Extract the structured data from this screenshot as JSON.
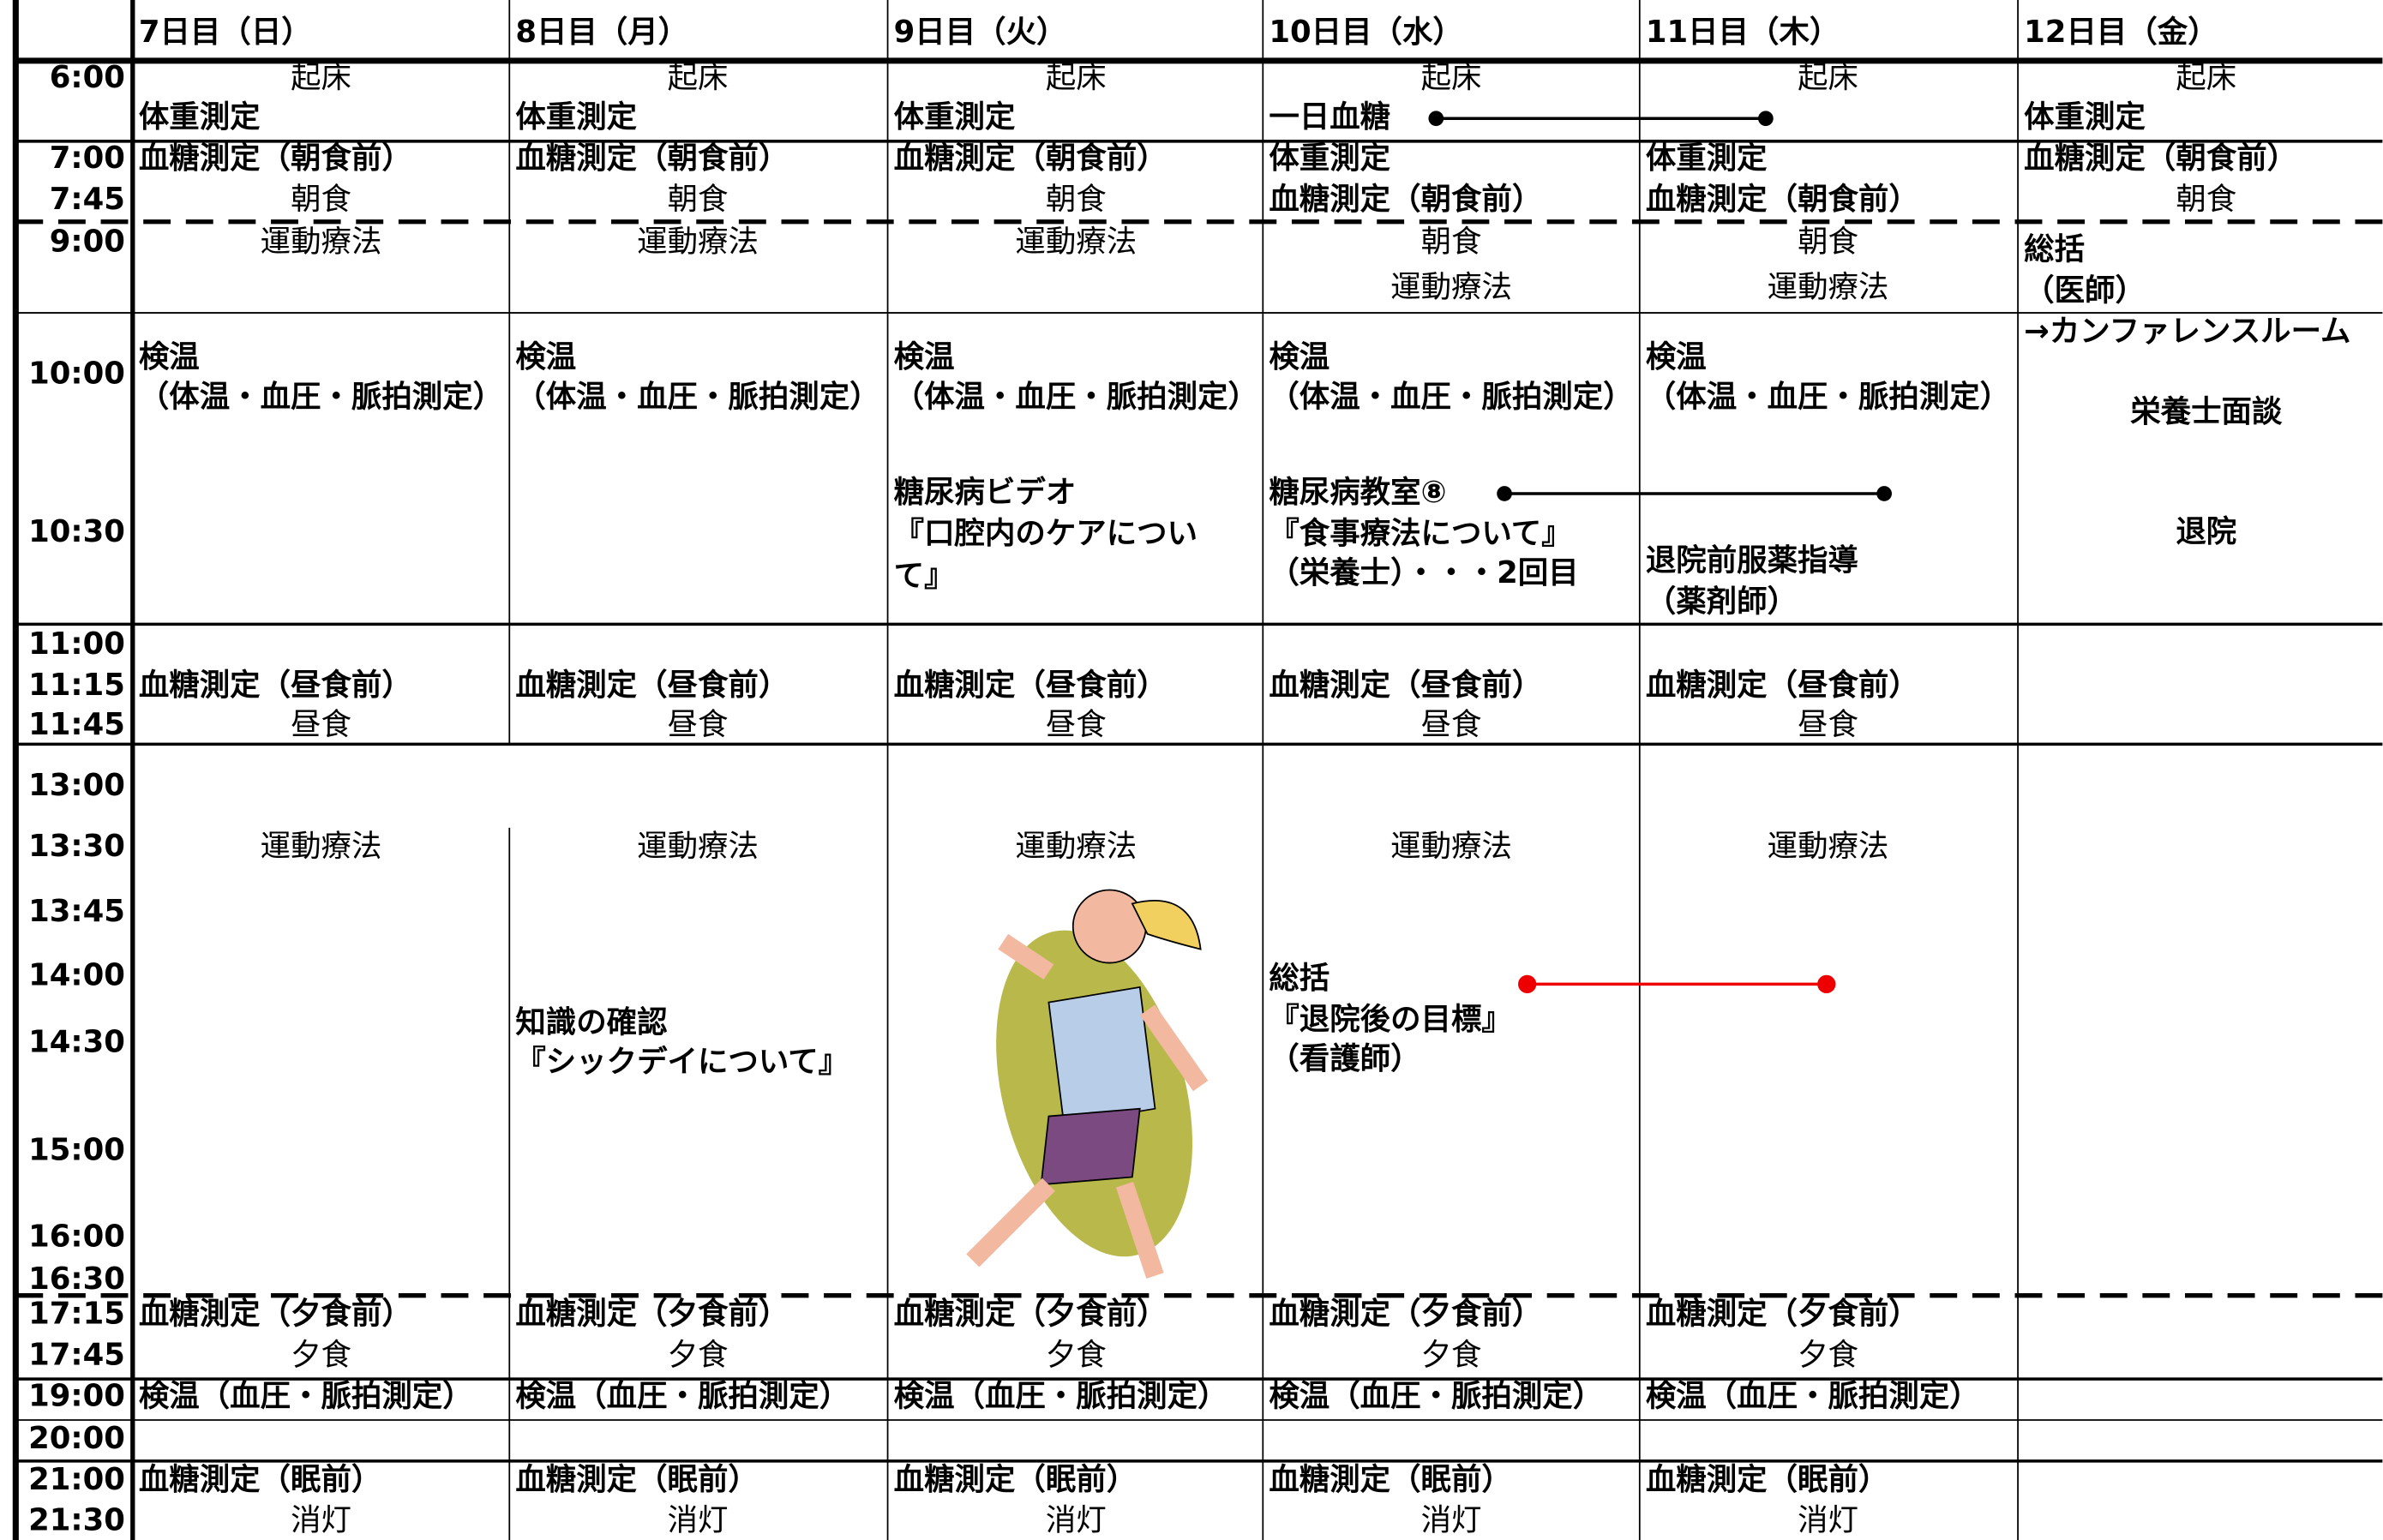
{
  "times": [
    "6:00",
    "7:00",
    "7:45",
    "9:00",
    "10:00",
    "10:30",
    "11:00",
    "11:15",
    "11:45",
    "13:00",
    "13:30",
    "13:45",
    "14:00",
    "14:30",
    "15:00",
    "16:00",
    "16:30",
    "17:15",
    "17:45",
    "19:00",
    "20:00",
    "21:00",
    "21:30"
  ],
  "days": [
    {
      "header": "7日目（日）",
      "items": [
        "起床",
        "体重測定",
        "血糖測定（朝食前）",
        "朝食",
        "運動療法",
        "検温",
        "（体温・血圧・脈拍測定）",
        "血糖測定（昼食前）",
        "昼食",
        "運動療法",
        "血糖測定（夕食前）",
        "夕食",
        "検温（血圧・脈拍測定）",
        "血糖測定（眠前）",
        "消灯"
      ]
    },
    {
      "header": "8日目（月）",
      "items": [
        "起床",
        "体重測定",
        "血糖測定（朝食前）",
        "朝食",
        "運動療法",
        "検温",
        "（体温・血圧・脈拍測定）",
        "血糖測定（昼食前）",
        "昼食",
        "運動療法",
        "知識の確認",
        "『シックデイについて』",
        "血糖測定（夕食前）",
        "夕食",
        "検温（血圧・脈拍測定）",
        "血糖測定（眠前）",
        "消灯"
      ]
    },
    {
      "header": "9日目（火）",
      "items": [
        "起床",
        "体重測定",
        "血糖測定（朝食前）",
        "朝食",
        "運動療法",
        "検温",
        "（体温・血圧・脈拍測定）",
        "糖尿病ビデオ",
        "『口腔内のケアについ",
        "て』",
        "血糖測定（昼食前）",
        "昼食",
        "運動療法",
        "血糖測定（夕食前）",
        "夕食",
        "検温（血圧・脈拍測定）",
        "血糖測定（眠前）",
        "消灯"
      ]
    },
    {
      "header": "10日目（水）",
      "items": [
        "起床",
        "一日血糖",
        "体重測定",
        "血糖測定（朝食前）",
        "朝食",
        "運動療法",
        "検温",
        "（体温・血圧・脈拍測定）",
        "糖尿病教室⑧",
        "『食事療法について』",
        "（栄養士）・・・2回目",
        "血糖測定（昼食前）",
        "昼食",
        "運動療法",
        "総括",
        "『退院後の目標』",
        "（看護師）",
        "血糖測定（夕食前）",
        "夕食",
        "検温（血圧・脈拍測定）",
        "血糖測定（眠前）",
        "消灯"
      ]
    },
    {
      "header": "11日目（木）",
      "items": [
        "起床",
        "体重測定",
        "血糖測定（朝食前）",
        "朝食",
        "運動療法",
        "検温",
        "（体温・血圧・脈拍測定）",
        "退院前服薬指導",
        "（薬剤師）",
        "血糖測定（昼食前）",
        "昼食",
        "運動療法",
        "血糖測定（夕食前）",
        "夕食",
        "検温（血圧・脈拍測定）",
        "血糖測定（眠前）",
        "消灯"
      ]
    },
    {
      "header": "12日目（金）",
      "items": [
        "起床",
        "体重測定",
        "血糖測定（朝食前）",
        "朝食",
        "総括",
        "（医師）",
        "→カンファレンスルーム",
        "栄養士面談",
        "退院"
      ]
    }
  ]
}
